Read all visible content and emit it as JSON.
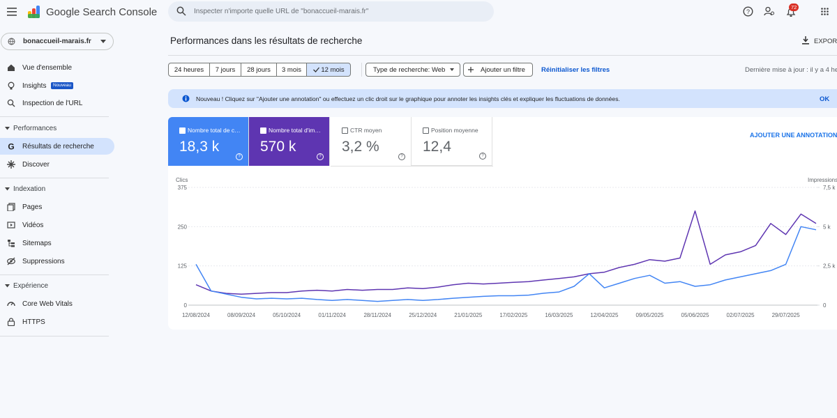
{
  "header": {
    "product": "Google Search Console",
    "search_placeholder": "Inspecter n'importe quelle URL de \"bonaccueil-marais.fr\"",
    "notifications": "72"
  },
  "sidebar": {
    "property": "bonaccueil-marais.fr",
    "top": [
      "Vue d'ensemble",
      "Insights",
      "Inspection de l'URL"
    ],
    "insights_badge": "Nouveau",
    "sections": [
      {
        "title": "Performances",
        "items": [
          "Résultats de recherche",
          "Discover"
        ]
      },
      {
        "title": "Indexation",
        "items": [
          "Pages",
          "Vidéos",
          "Sitemaps",
          "Suppressions"
        ]
      },
      {
        "title": "Expérience",
        "items": [
          "Core Web Vitals",
          "HTTPS"
        ]
      }
    ]
  },
  "main": {
    "title": "Performances dans les résultats de recherche",
    "export": "EXPORT",
    "ranges": [
      "24 heures",
      "7 jours",
      "28 jours",
      "3 mois",
      "12 mois"
    ],
    "search_type": "Type de recherche: Web",
    "add_filter": "Ajouter un filtre",
    "reset_filters": "Réinitialiser les filtres",
    "last_update": "Dernière mise à jour : il y a 4 he",
    "notice": "Nouveau ! Cliquez sur \"Ajouter une annotation\" ou effectuez un clic droit sur le graphique pour annoter les insights clés et expliquer les fluctuations de données.",
    "notice_ok": "OK",
    "metrics": [
      {
        "label": "Nombre total de c…",
        "value": "18,3 k"
      },
      {
        "label": "Nombre total d'im…",
        "value": "570 k"
      },
      {
        "label": "CTR moyen",
        "value": "3,2 %"
      },
      {
        "label": "Position moyenne",
        "value": "12,4"
      }
    ],
    "add_annotation": "AJOUTER UNE ANNOTATION"
  },
  "chart_data": {
    "type": "line",
    "y_label": "Clics",
    "y2_label": "Impressions",
    "categories": [
      "12/08/2024",
      null,
      null,
      "08/09/2024",
      null,
      null,
      "05/10/2024",
      null,
      null,
      "01/11/2024",
      null,
      null,
      "28/11/2024",
      null,
      null,
      "25/12/2024",
      null,
      null,
      "21/01/2025",
      null,
      null,
      "17/02/2025",
      null,
      null,
      "16/03/2025",
      null,
      null,
      "12/04/2025",
      null,
      null,
      "09/05/2025",
      null,
      null,
      "05/06/2025",
      null,
      null,
      "02/07/2025",
      null,
      null,
      "29/07/2025",
      null,
      null
    ],
    "series": [
      {
        "name": "Clics",
        "color": "#4285f4",
        "values": [
          130,
          45,
          35,
          25,
          20,
          22,
          20,
          22,
          18,
          15,
          18,
          15,
          12,
          15,
          18,
          15,
          18,
          22,
          25,
          28,
          30,
          30,
          32,
          38,
          42,
          60,
          100,
          55,
          70,
          85,
          95,
          70,
          75,
          60,
          65,
          80,
          90,
          100,
          110,
          130,
          250,
          240
        ]
      },
      {
        "name": "Impressions",
        "color": "#5e35b1",
        "axis": "y2",
        "values": [
          1300,
          900,
          750,
          700,
          750,
          800,
          800,
          900,
          950,
          900,
          1000,
          950,
          1000,
          1000,
          1100,
          1050,
          1150,
          1300,
          1400,
          1350,
          1400,
          1450,
          1500,
          1600,
          1700,
          1800,
          2000,
          2100,
          2400,
          2600,
          2900,
          2800,
          3000,
          6000,
          2600,
          3200,
          3400,
          3800,
          5200,
          4500,
          5800,
          5200
        ]
      }
    ],
    "ylim": [
      0,
      375
    ],
    "yticks": [
      0,
      125,
      250,
      375
    ],
    "y2lim": [
      0,
      7500
    ],
    "y2ticks": [
      0,
      {
        "value": 2500,
        "label": "2,5 k"
      },
      {
        "value": 5000,
        "label": "5 k"
      },
      {
        "value": 7500,
        "label": "7,5 k"
      }
    ],
    "grid": true
  }
}
